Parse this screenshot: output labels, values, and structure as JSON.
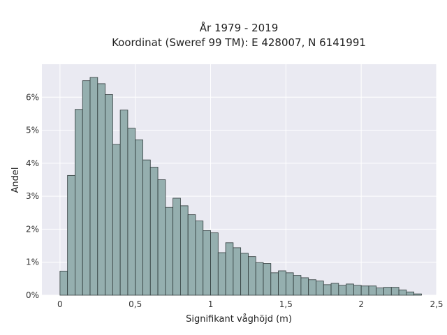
{
  "chart_data": {
    "type": "bar",
    "title_lines": [
      "År 1979 - 2019",
      "Koordinat (Sweref 99 TM): E 428007, N 6141991"
    ],
    "xlabel": "Signifikant våghöjd (m)",
    "ylabel": "Andel",
    "bin_width": 0.05,
    "xlim": [
      -0.12,
      2.5
    ],
    "ylim": [
      0,
      7.0
    ],
    "x_ticks": [
      0,
      0.5,
      1,
      1.5,
      2,
      2.5
    ],
    "x_tick_labels": [
      "0",
      "0,5",
      "1",
      "1,5",
      "2",
      "2,5"
    ],
    "y_ticks": [
      0,
      1,
      2,
      3,
      4,
      5,
      6
    ],
    "y_tick_labels": [
      "0%",
      "1%",
      "2%",
      "3%",
      "4%",
      "5%",
      "6%"
    ],
    "grid": true,
    "bin_starts": [
      0.0,
      0.05,
      0.1,
      0.15,
      0.2,
      0.25,
      0.3,
      0.35,
      0.4,
      0.45,
      0.5,
      0.55,
      0.6,
      0.65,
      0.7,
      0.75,
      0.8,
      0.85,
      0.9,
      0.95,
      1.0,
      1.05,
      1.1,
      1.15,
      1.2,
      1.25,
      1.3,
      1.35,
      1.4,
      1.45,
      1.5,
      1.55,
      1.6,
      1.65,
      1.7,
      1.75,
      1.8,
      1.85,
      1.9,
      1.95,
      2.0,
      2.05,
      2.1,
      2.15,
      2.2,
      2.25,
      2.3,
      2.35
    ],
    "values": [
      0.73,
      3.63,
      5.63,
      6.5,
      6.6,
      6.41,
      6.08,
      4.57,
      5.61,
      5.06,
      4.71,
      4.1,
      3.88,
      3.5,
      2.66,
      2.94,
      2.71,
      2.44,
      2.25,
      1.96,
      1.89,
      1.29,
      1.59,
      1.44,
      1.27,
      1.17,
      0.99,
      0.96,
      0.68,
      0.74,
      0.68,
      0.6,
      0.53,
      0.47,
      0.43,
      0.32,
      0.36,
      0.3,
      0.34,
      0.3,
      0.28,
      0.28,
      0.22,
      0.24,
      0.24,
      0.16,
      0.1,
      0.04
    ],
    "colors": {
      "bar_fill": "#95afaf",
      "bar_stroke": "#2f3a3a",
      "plot_bg": "#eaeaf2",
      "grid": "#ffffff"
    }
  }
}
